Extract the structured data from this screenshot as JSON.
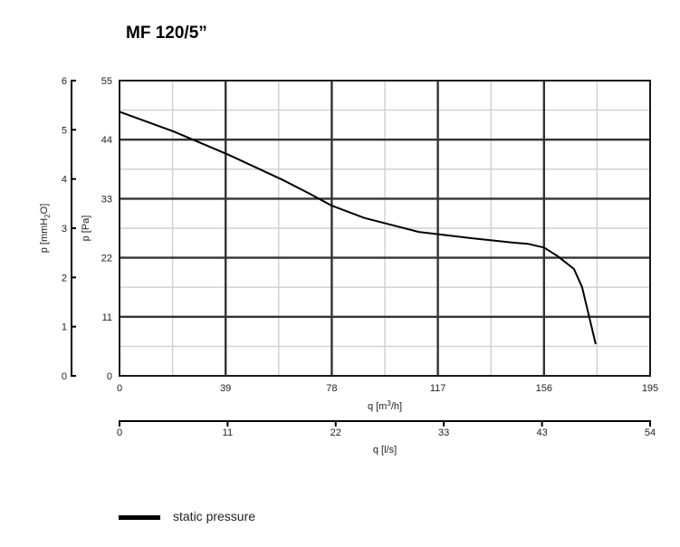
{
  "chart_data": {
    "type": "line",
    "title": "MF 120/5”",
    "x_primary": {
      "label_main": "q [m",
      "label_sup": "3",
      "label_end": "/h]",
      "ticks": [
        0,
        39,
        78,
        117,
        156,
        195
      ],
      "range": [
        0,
        195
      ]
    },
    "x_secondary": {
      "label": "q [l/s]",
      "ticks": [
        0,
        11,
        22,
        33,
        43,
        54
      ],
      "range": [
        0,
        54
      ]
    },
    "y_primary": {
      "label": "p [Pa]",
      "ticks": [
        0,
        11,
        22,
        33,
        44,
        55
      ],
      "range": [
        0,
        55
      ]
    },
    "y_secondary": {
      "label_main": "p [mmH",
      "label_sub": "2",
      "label_end": "O]",
      "ticks": [
        0,
        1,
        2,
        3,
        4,
        5,
        6
      ],
      "range": [
        0,
        6
      ]
    },
    "grid": true,
    "series": [
      {
        "name": "static pressure",
        "color": "#000000",
        "x": [
          0,
          20,
          40,
          60,
          70,
          78,
          90,
          110,
          130,
          145,
          150,
          156,
          161,
          167,
          170,
          175
        ],
        "y": [
          49.2,
          45.5,
          41.2,
          36.5,
          33.9,
          31.7,
          29.4,
          26.8,
          25.6,
          24.8,
          24.6,
          23.9,
          22.3,
          19.9,
          16.5,
          5.9
        ]
      }
    ],
    "legend": {
      "position": "bottom-left"
    }
  }
}
